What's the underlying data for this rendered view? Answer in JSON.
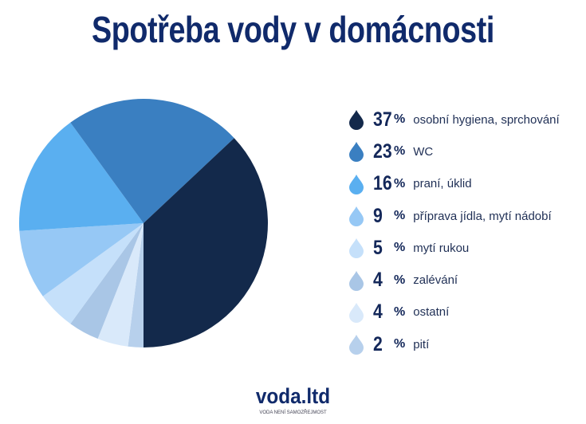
{
  "title": "Spotřeba vody v domácnosti",
  "logo": "voda.ltd",
  "tagline": "VODA NENÍ SAMOZŘEJMOST",
  "chart_data": {
    "type": "pie",
    "title": "Spotřeba vody v domácnosti",
    "legend_position": "right",
    "slices": [
      {
        "label": "osobní hygiena, sprchování",
        "value": 37,
        "pct_text": "37",
        "color": "#13294b"
      },
      {
        "label": "WC",
        "value": 23,
        "pct_text": "23",
        "color": "#3a7fc1"
      },
      {
        "label": "praní, úklid",
        "value": 16,
        "pct_text": "16",
        "color": "#5aaff0"
      },
      {
        "label": "příprava jídla, mytí nádobí",
        "value": 9,
        "pct_text": "9",
        "color": "#96c8f5"
      },
      {
        "label": "mytí rukou",
        "value": 5,
        "pct_text": "5",
        "color": "#c5e0fa"
      },
      {
        "label": "zalévání",
        "value": 4,
        "pct_text": "4",
        "color": "#a9c6e6"
      },
      {
        "label": "ostatní",
        "value": 4,
        "pct_text": "4",
        "color": "#d9e9fa"
      },
      {
        "label": "pití",
        "value": 2,
        "pct_text": "2",
        "color": "#b7d0ec"
      }
    ],
    "percent_sign": "%"
  }
}
